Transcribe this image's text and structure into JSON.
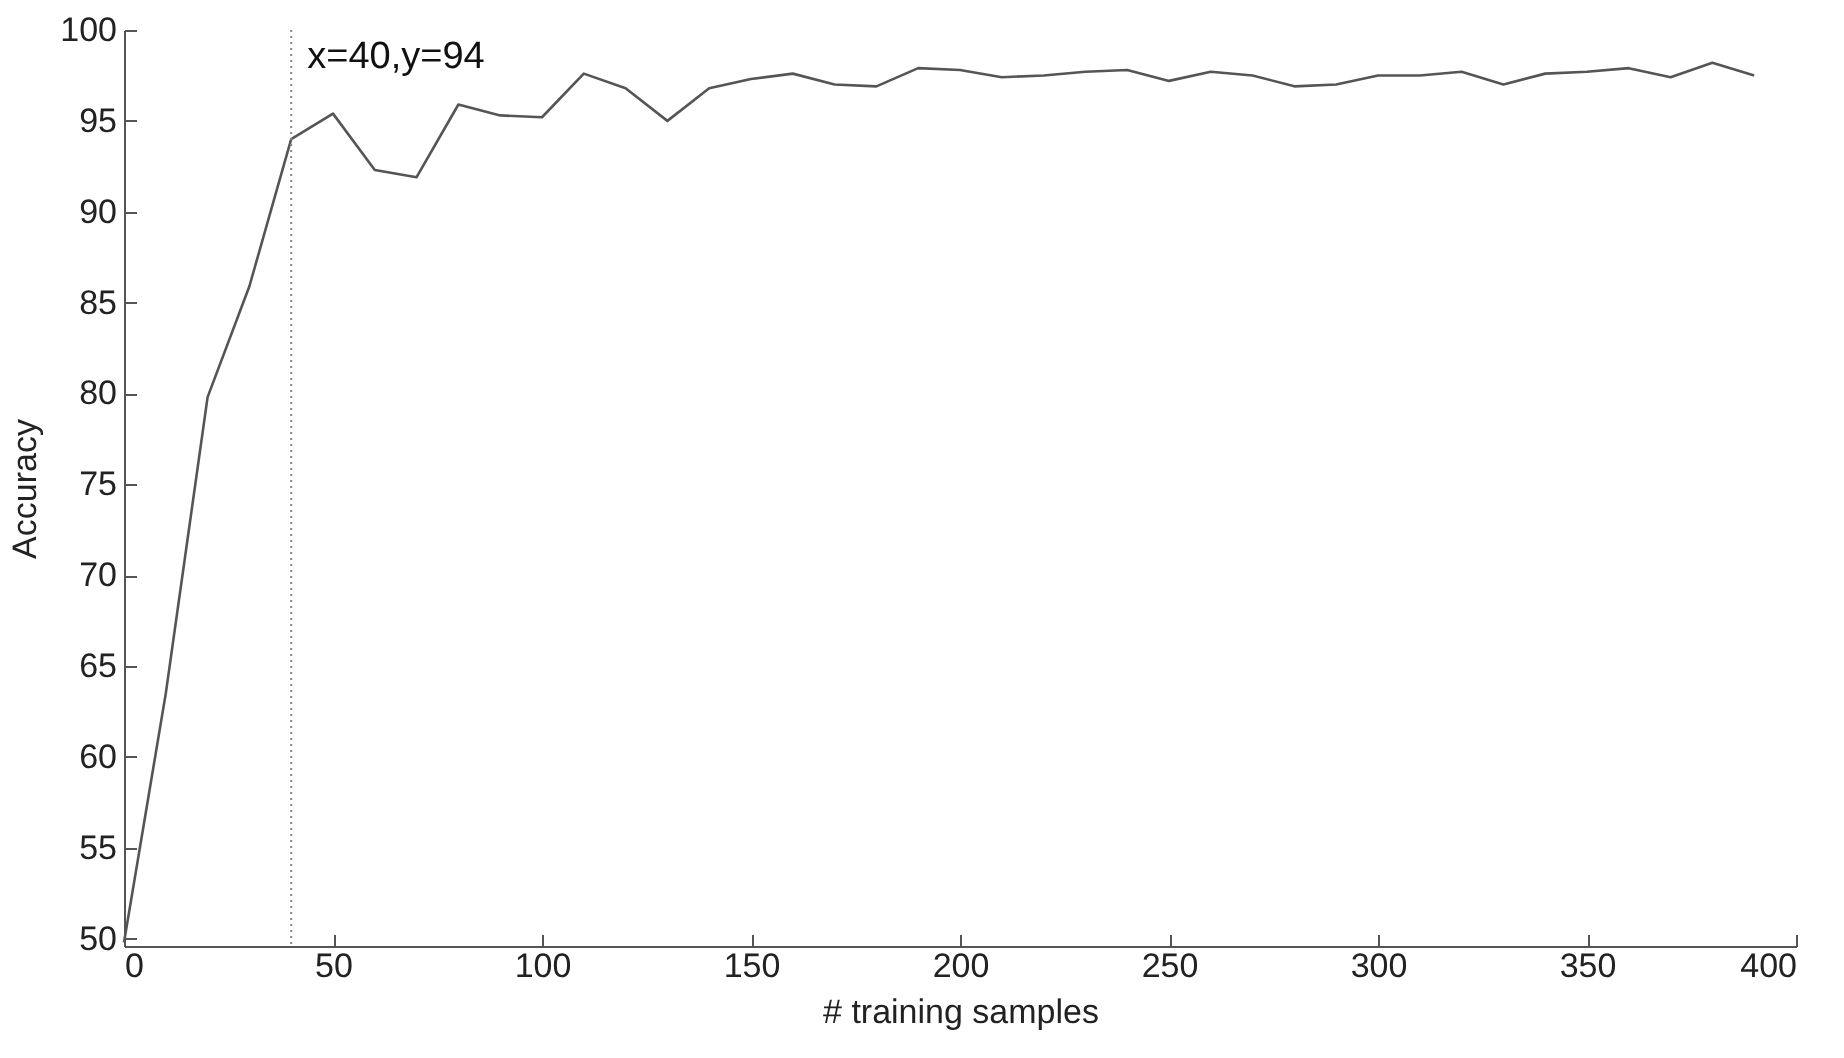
{
  "chart_data": {
    "type": "line",
    "xlabel": "# training samples",
    "ylabel": "Accuracy",
    "x": [
      0,
      10,
      20,
      30,
      40,
      50,
      60,
      70,
      80,
      90,
      100,
      110,
      120,
      130,
      140,
      150,
      160,
      170,
      180,
      190,
      200,
      210,
      220,
      230,
      240,
      250,
      260,
      270,
      280,
      290,
      300,
      310,
      320,
      330,
      340,
      350,
      360,
      370,
      380,
      390
    ],
    "series": [
      {
        "color": "#555555",
        "values": [
          49.8,
          63.5,
          79.8,
          85.9,
          94,
          95.4,
          92.3,
          91.9,
          95.9,
          95.3,
          95.2,
          97.6,
          96.8,
          95.0,
          96.8,
          97.3,
          97.6,
          97.0,
          96.9,
          97.9,
          97.8,
          97.4,
          97.5,
          97.7,
          97.8,
          97.2,
          97.7,
          97.5,
          96.9,
          97.0,
          97.5,
          97.5,
          97.7,
          97.0,
          97.6,
          97.7,
          97.9,
          97.4,
          98.2,
          97.5
        ]
      }
    ],
    "xlim": [
      0,
      400
    ],
    "xticks": [
      0,
      50,
      100,
      150,
      200,
      250,
      300,
      350,
      400
    ],
    "ylim": [
      49.6,
      100
    ],
    "yticks": [
      50,
      55,
      60,
      65,
      70,
      75,
      80,
      85,
      90,
      95,
      100
    ],
    "ref_lines": [
      {
        "axis": "x",
        "value": 40,
        "label": "x=40,y=94",
        "line_style": "dotted",
        "color": "#888888"
      }
    ],
    "grid": false,
    "marker": "none",
    "line_style": "solid"
  }
}
